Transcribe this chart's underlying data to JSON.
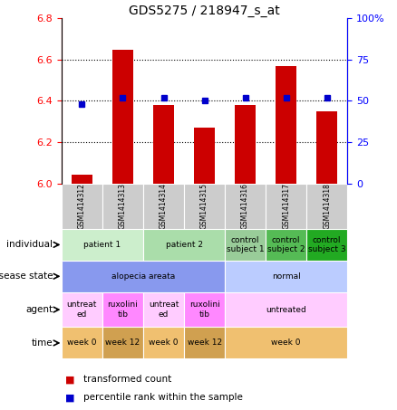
{
  "title": "GDS5275 / 218947_s_at",
  "samples": [
    "GSM1414312",
    "GSM1414313",
    "GSM1414314",
    "GSM1414315",
    "GSM1414316",
    "GSM1414317",
    "GSM1414318"
  ],
  "bar_values": [
    6.04,
    6.65,
    6.38,
    6.27,
    6.38,
    6.57,
    6.35
  ],
  "dot_values": [
    48,
    52,
    52,
    50,
    52,
    52,
    52
  ],
  "ylim": [
    6.0,
    6.8
  ],
  "y2lim": [
    0,
    100
  ],
  "y_ticks": [
    6.0,
    6.2,
    6.4,
    6.6,
    6.8
  ],
  "y2_ticks": [
    0,
    25,
    50,
    75,
    100
  ],
  "bar_color": "#cc0000",
  "dot_color": "#0000cc",
  "bar_width": 0.5,
  "sample_box_color": "#cccccc",
  "individual_row": {
    "label": "individual",
    "groups": [
      {
        "cols": [
          0,
          1
        ],
        "text": "patient 1",
        "color": "#cceecc"
      },
      {
        "cols": [
          2,
          3
        ],
        "text": "patient 2",
        "color": "#aaddaa"
      },
      {
        "cols": [
          4
        ],
        "text": "control\nsubject 1",
        "color": "#99cc99"
      },
      {
        "cols": [
          5
        ],
        "text": "control\nsubject 2",
        "color": "#55bb55"
      },
      {
        "cols": [
          6
        ],
        "text": "control\nsubject 3",
        "color": "#22aa22"
      }
    ]
  },
  "disease_row": {
    "label": "disease state",
    "groups": [
      {
        "cols": [
          0,
          1,
          2,
          3
        ],
        "text": "alopecia areata",
        "color": "#8899ee"
      },
      {
        "cols": [
          4,
          5,
          6
        ],
        "text": "normal",
        "color": "#bbccff"
      }
    ]
  },
  "agent_row": {
    "label": "agent",
    "groups": [
      {
        "cols": [
          0
        ],
        "text": "untreat\ned",
        "color": "#ffccff"
      },
      {
        "cols": [
          1
        ],
        "text": "ruxolini\ntib",
        "color": "#ff88ff"
      },
      {
        "cols": [
          2
        ],
        "text": "untreat\ned",
        "color": "#ffccff"
      },
      {
        "cols": [
          3
        ],
        "text": "ruxolini\ntib",
        "color": "#ff88ff"
      },
      {
        "cols": [
          4,
          5,
          6
        ],
        "text": "untreated",
        "color": "#ffccff"
      }
    ]
  },
  "time_row": {
    "label": "time",
    "groups": [
      {
        "cols": [
          0
        ],
        "text": "week 0",
        "color": "#f0c070"
      },
      {
        "cols": [
          1
        ],
        "text": "week 12",
        "color": "#d0a050"
      },
      {
        "cols": [
          2
        ],
        "text": "week 0",
        "color": "#f0c070"
      },
      {
        "cols": [
          3
        ],
        "text": "week 12",
        "color": "#d0a050"
      },
      {
        "cols": [
          4,
          5,
          6
        ],
        "text": "week 0",
        "color": "#f0c070"
      }
    ]
  },
  "row_labels": [
    "individual",
    "disease state",
    "agent",
    "time"
  ],
  "legend_items": [
    {
      "color": "#cc0000",
      "label": "transformed count"
    },
    {
      "color": "#0000cc",
      "label": "percentile rank within the sample"
    }
  ]
}
